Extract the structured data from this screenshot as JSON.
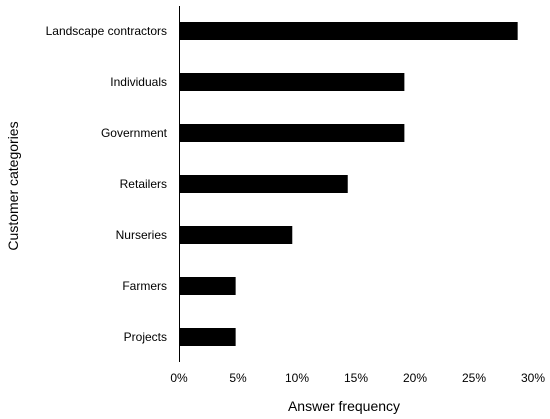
{
  "chart_data": {
    "type": "bar",
    "orientation": "horizontal",
    "categories": [
      "Landscape contractors",
      "Individuals",
      "Government",
      "Retailers",
      "Nurseries",
      "Farmers",
      "Projects"
    ],
    "values": [
      28.7,
      19.1,
      19.1,
      14.3,
      9.6,
      4.8,
      4.8
    ],
    "xlabel": "Answer frequency",
    "ylabel": "Customer categories",
    "xlim": [
      0,
      30
    ],
    "xticks": [
      0,
      5,
      10,
      15,
      20,
      25,
      30
    ],
    "xtick_labels": [
      "0%",
      "5%",
      "10%",
      "15%",
      "20%",
      "25%",
      "30%"
    ],
    "grid": false,
    "bar_color": "#000000"
  }
}
